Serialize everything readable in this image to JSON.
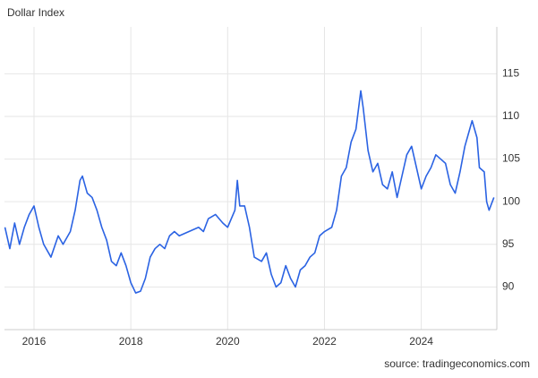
{
  "chart_data": {
    "type": "line",
    "title": "Dollar Index",
    "source": "source: tradingeconomics.com",
    "series": [
      {
        "name": "Dollar Index",
        "color": "#2b63e3",
        "x": [
          2015.4,
          2015.5,
          2015.6,
          2015.7,
          2015.8,
          2015.9,
          2016.0,
          2016.1,
          2016.2,
          2016.35,
          2016.5,
          2016.6,
          2016.75,
          2016.85,
          2016.95,
          2017.0,
          2017.1,
          2017.2,
          2017.3,
          2017.4,
          2017.5,
          2017.6,
          2017.7,
          2017.8,
          2017.9,
          2018.0,
          2018.1,
          2018.2,
          2018.3,
          2018.4,
          2018.5,
          2018.6,
          2018.7,
          2018.8,
          2018.9,
          2019.0,
          2019.2,
          2019.4,
          2019.5,
          2019.6,
          2019.75,
          2019.9,
          2020.0,
          2020.15,
          2020.2,
          2020.25,
          2020.35,
          2020.45,
          2020.55,
          2020.7,
          2020.8,
          2020.9,
          2021.0,
          2021.1,
          2021.2,
          2021.3,
          2021.4,
          2021.5,
          2021.6,
          2021.7,
          2021.8,
          2021.9,
          2022.0,
          2022.15,
          2022.25,
          2022.35,
          2022.45,
          2022.55,
          2022.65,
          2022.75,
          2022.8,
          2022.9,
          2023.0,
          2023.1,
          2023.2,
          2023.3,
          2023.4,
          2023.5,
          2023.6,
          2023.7,
          2023.8,
          2023.9,
          2024.0,
          2024.1,
          2024.2,
          2024.3,
          2024.4,
          2024.5,
          2024.6,
          2024.7,
          2024.8,
          2024.9,
          2025.0,
          2025.05,
          2025.15,
          2025.2,
          2025.3,
          2025.35,
          2025.4,
          2025.5
        ],
        "values": [
          97,
          94.5,
          97.5,
          95,
          97,
          98.5,
          99.5,
          97,
          95,
          93.5,
          96,
          95,
          96.5,
          99,
          102.5,
          103,
          101,
          100.5,
          99,
          97,
          95.5,
          93,
          92.5,
          94,
          92.5,
          90.5,
          89.3,
          89.5,
          91,
          93.5,
          94.5,
          95,
          94.5,
          96,
          96.5,
          96,
          96.5,
          97,
          96.5,
          98,
          98.5,
          97.5,
          97,
          99,
          102.5,
          99.5,
          99.5,
          97,
          93.5,
          93,
          94,
          91.5,
          90,
          90.5,
          92.5,
          91,
          90,
          92,
          92.5,
          93.5,
          94,
          96,
          96.5,
          97,
          99,
          103,
          104,
          107,
          108.5,
          113,
          111,
          106,
          103.5,
          104.5,
          102,
          101.5,
          103.5,
          100.5,
          103,
          105.5,
          106.5,
          104,
          101.5,
          103,
          104,
          105.5,
          105,
          104.5,
          102,
          101,
          103.5,
          106.5,
          108.5,
          109.5,
          107.5,
          104,
          103.5,
          100,
          99,
          100.5
        ]
      }
    ],
    "xlim": [
      2015.39,
      2025.56
    ],
    "xticks": [
      2016,
      2018,
      2020,
      2022,
      2024
    ],
    "ylim": [
      85,
      120.5
    ],
    "yticks": [
      90,
      95,
      100,
      105,
      110,
      115
    ],
    "grid": true
  }
}
